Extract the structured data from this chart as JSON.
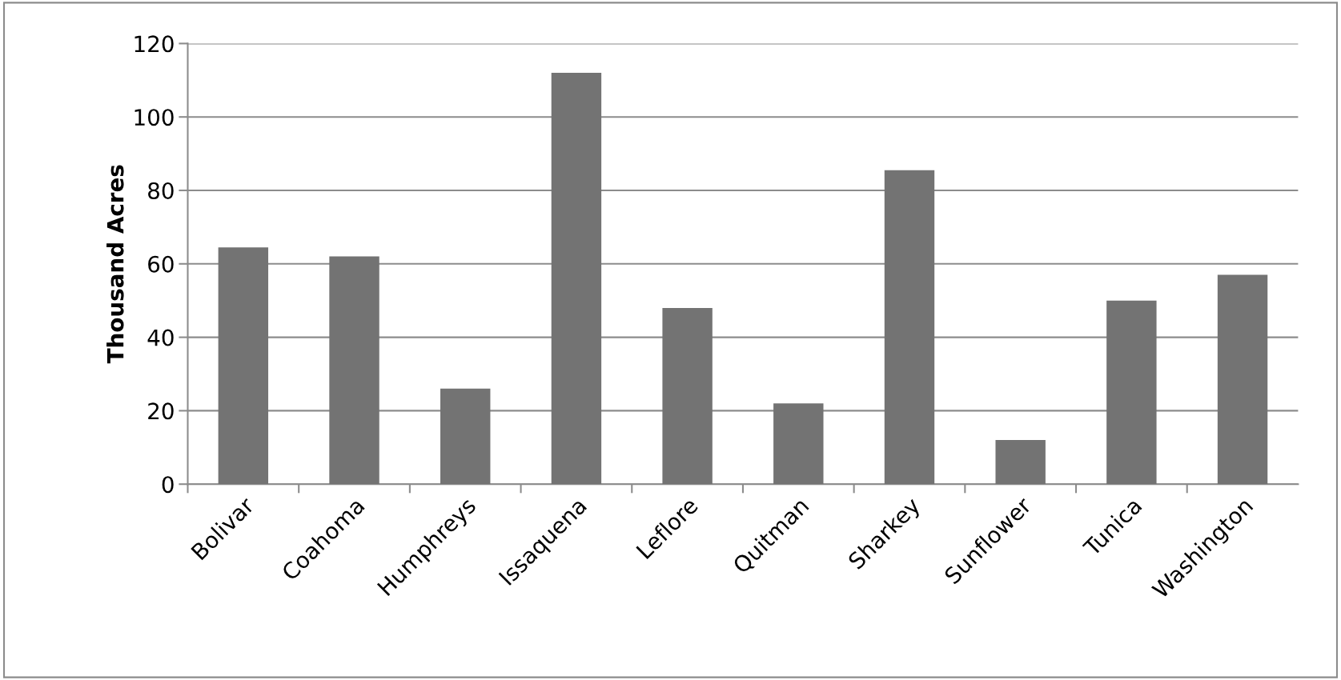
{
  "chart_data": {
    "type": "bar",
    "ylabel": "Thousand Acres",
    "categories": [
      "Bolivar",
      "Coahoma",
      "Humphreys",
      "Issaquena",
      "Leflore",
      "Quitman",
      "Sharkey",
      "Sunflower",
      "Tunica",
      "Washington"
    ],
    "values": [
      64.5,
      62,
      26,
      112,
      48,
      22,
      85.5,
      12,
      50,
      57
    ],
    "color": "#737373",
    "ylim": [
      0,
      120
    ],
    "yticks": [
      0,
      20,
      40,
      60,
      80,
      100,
      120
    ],
    "grid": "y"
  }
}
